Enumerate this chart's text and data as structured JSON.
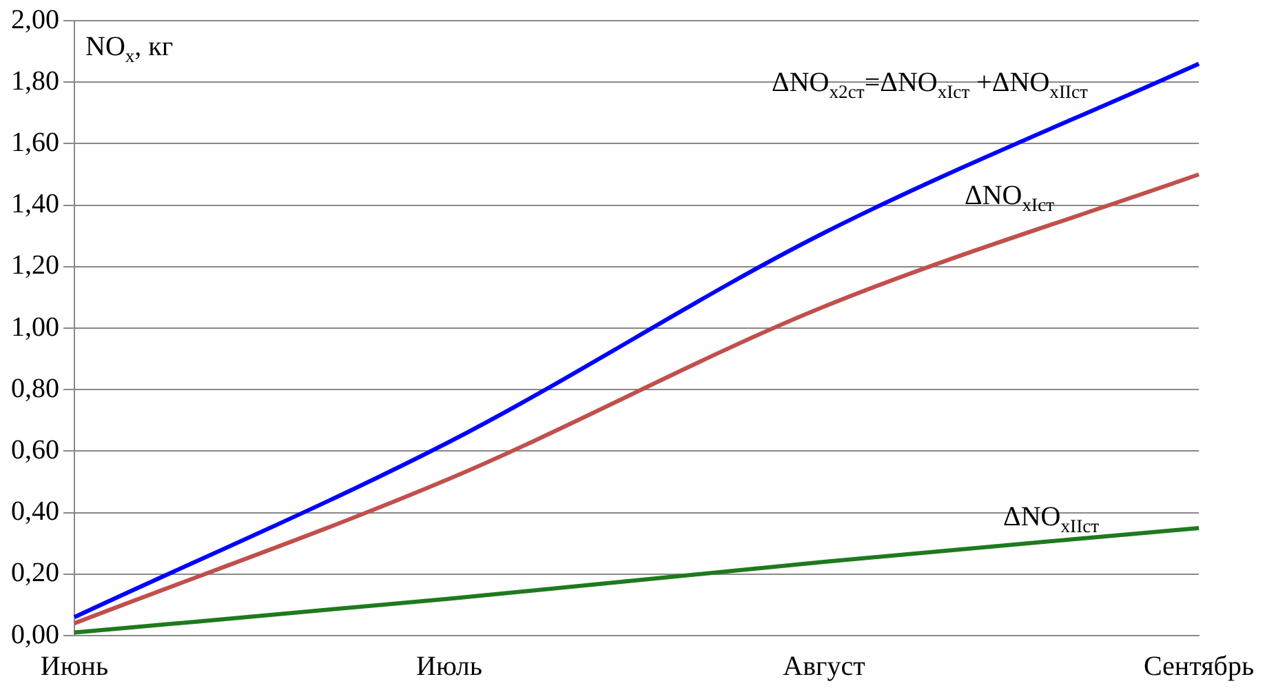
{
  "chart_data": {
    "type": "line",
    "ylabel": "NO$_{x}$, кг",
    "categories": [
      "Июнь",
      "Июль",
      "Август",
      "Сентябрь"
    ],
    "series": [
      {
        "name": "ΔNO$_{x2ст}$=ΔNO$_{xIст}$ +ΔNO$_{xIIст}$",
        "color": "#0000ff",
        "values": [
          0.06,
          0.63,
          1.31,
          1.86
        ]
      },
      {
        "name": "ΔNO$_{xIст}$",
        "color": "#c0504d",
        "values": [
          0.04,
          0.51,
          1.07,
          1.5
        ]
      },
      {
        "name": "ΔNO$_{xIIст}$",
        "color": "#1e7a1e",
        "values": [
          0.01,
          0.12,
          0.24,
          0.35
        ]
      }
    ],
    "ylim": [
      0,
      2
    ],
    "yticks": [
      {
        "value": 0,
        "label": "0,00"
      },
      {
        "value": 0.2,
        "label": "0,20"
      },
      {
        "value": 0.4,
        "label": "0,40"
      },
      {
        "value": 0.6,
        "label": "0,60"
      },
      {
        "value": 0.8,
        "label": "0,80"
      },
      {
        "value": 1,
        "label": "1,00"
      },
      {
        "value": 1.2,
        "label": "1,20"
      },
      {
        "value": 1.4,
        "label": "1,40"
      },
      {
        "value": 1.6,
        "label": "1,60"
      },
      {
        "value": 1.8,
        "label": "1,80"
      },
      {
        "value": 2,
        "label": "2,00"
      }
    ],
    "grid": "y",
    "legend": false,
    "marker": "none",
    "line_style": "solid"
  }
}
